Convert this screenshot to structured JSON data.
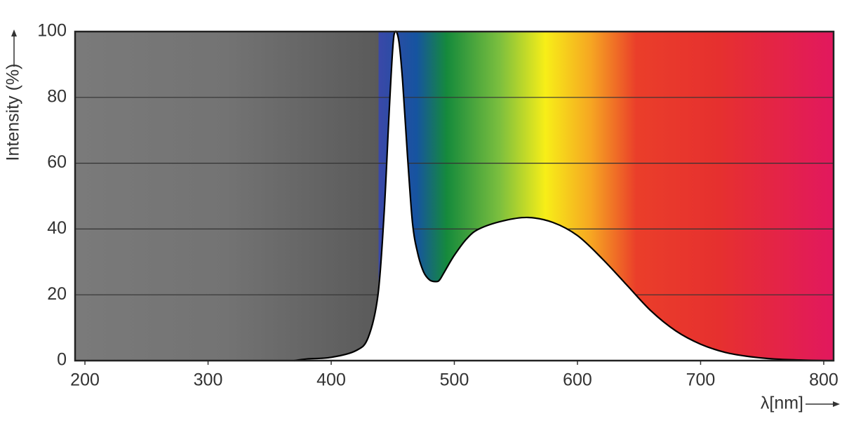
{
  "chart_data": {
    "type": "line",
    "y_label": "Intensity (%)",
    "x_label": "λ[nm]",
    "x": [
      370,
      380,
      400,
      420,
      430,
      438,
      443,
      447,
      450,
      452,
      455,
      458,
      462,
      466,
      470,
      475,
      480,
      485,
      488,
      492,
      500,
      510,
      520,
      540,
      560,
      580,
      600,
      620,
      640,
      660,
      680,
      700,
      720,
      740,
      760,
      780,
      800,
      808
    ],
    "series": [
      {
        "color": "#000000",
        "values": [
          0,
          0.5,
          1,
          3,
          7,
          20,
          45,
          75,
          95,
          100,
          97,
          85,
          62,
          42,
          33,
          27,
          24.5,
          24,
          24.5,
          27,
          32,
          37,
          40,
          42.5,
          43.5,
          42,
          38,
          31,
          23,
          15,
          9,
          5,
          2.5,
          1.2,
          0.5,
          0.2,
          0,
          0
        ]
      }
    ],
    "xlim": [
      192,
      808
    ],
    "ylim": [
      0,
      100
    ],
    "xticks": [
      200,
      300,
      400,
      500,
      600,
      700,
      800
    ],
    "yticks": [
      0,
      20,
      40,
      60,
      80,
      100
    ],
    "grid": true
  }
}
